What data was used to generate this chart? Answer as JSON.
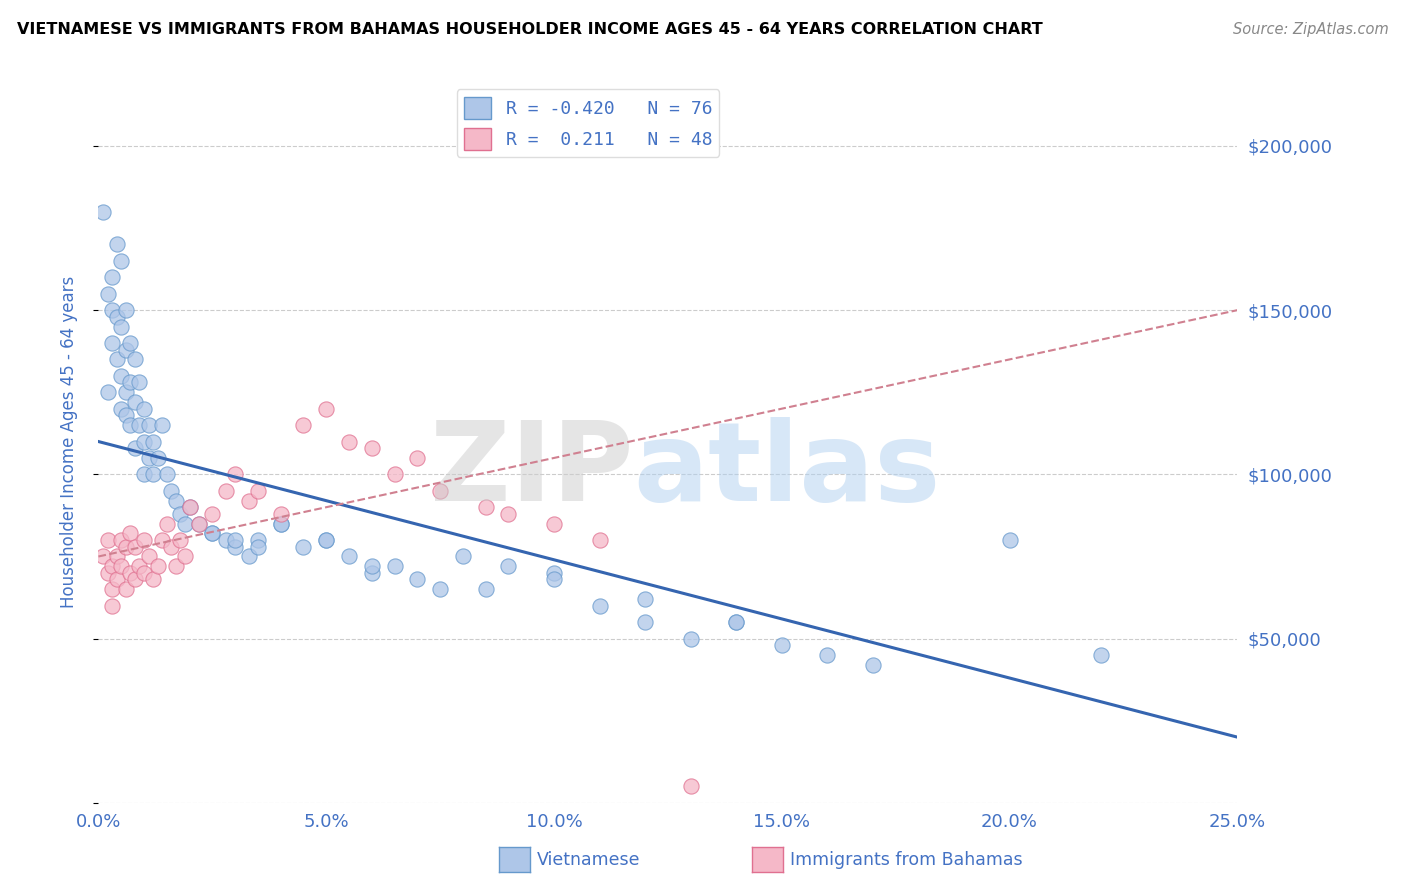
{
  "title": "VIETNAMESE VS IMMIGRANTS FROM BAHAMAS HOUSEHOLDER INCOME AGES 45 - 64 YEARS CORRELATION CHART",
  "source": "Source: ZipAtlas.com",
  "ylabel": "Householder Income Ages 45 - 64 years",
  "xlim": [
    0.0,
    0.25
  ],
  "ylim": [
    0,
    220000
  ],
  "xticks": [
    0.0,
    0.05,
    0.1,
    0.15,
    0.2,
    0.25
  ],
  "xticklabels": [
    "0.0%",
    "5.0%",
    "10.0%",
    "15.0%",
    "20.0%",
    "25.0%"
  ],
  "yticks_right": [
    50000,
    100000,
    150000,
    200000
  ],
  "yticklabels_right": [
    "$50,000",
    "$100,000",
    "$150,000",
    "$200,000"
  ],
  "legend_text1": "R = -0.420   N = 76",
  "legend_text2": "R =  0.211   N = 48",
  "color_viet_fill": "#aec6e8",
  "color_viet_edge": "#6699cc",
  "color_bah_fill": "#f5b8c8",
  "color_bah_edge": "#e07090",
  "color_trend_viet": "#3565b0",
  "color_trend_bah": "#d08090",
  "color_label": "#4472c4",
  "color_grid": "#cccccc",
  "background": "#ffffff",
  "viet_trend_x0": 0.0,
  "viet_trend_y0": 110000,
  "viet_trend_x1": 0.25,
  "viet_trend_y1": 20000,
  "bah_trend_x0": 0.0,
  "bah_trend_y0": 75000,
  "bah_trend_x1": 0.25,
  "bah_trend_y1": 150000,
  "viet_x": [
    0.001,
    0.002,
    0.002,
    0.003,
    0.003,
    0.003,
    0.004,
    0.004,
    0.004,
    0.005,
    0.005,
    0.005,
    0.005,
    0.006,
    0.006,
    0.006,
    0.006,
    0.007,
    0.007,
    0.007,
    0.008,
    0.008,
    0.008,
    0.009,
    0.009,
    0.01,
    0.01,
    0.01,
    0.011,
    0.011,
    0.012,
    0.012,
    0.013,
    0.014,
    0.015,
    0.016,
    0.017,
    0.018,
    0.019,
    0.02,
    0.022,
    0.025,
    0.028,
    0.03,
    0.033,
    0.035,
    0.04,
    0.045,
    0.05,
    0.055,
    0.06,
    0.065,
    0.07,
    0.075,
    0.085,
    0.09,
    0.1,
    0.11,
    0.12,
    0.13,
    0.14,
    0.15,
    0.16,
    0.17,
    0.2,
    0.22,
    0.14,
    0.12,
    0.1,
    0.08,
    0.06,
    0.05,
    0.04,
    0.035,
    0.03,
    0.025
  ],
  "viet_y": [
    180000,
    155000,
    125000,
    160000,
    150000,
    140000,
    170000,
    148000,
    135000,
    165000,
    145000,
    130000,
    120000,
    150000,
    138000,
    125000,
    118000,
    140000,
    128000,
    115000,
    135000,
    122000,
    108000,
    128000,
    115000,
    120000,
    110000,
    100000,
    115000,
    105000,
    110000,
    100000,
    105000,
    115000,
    100000,
    95000,
    92000,
    88000,
    85000,
    90000,
    85000,
    82000,
    80000,
    78000,
    75000,
    80000,
    85000,
    78000,
    80000,
    75000,
    70000,
    72000,
    68000,
    65000,
    65000,
    72000,
    70000,
    60000,
    55000,
    50000,
    55000,
    48000,
    45000,
    42000,
    80000,
    45000,
    55000,
    62000,
    68000,
    75000,
    72000,
    80000,
    85000,
    78000,
    80000,
    82000
  ],
  "bah_x": [
    0.001,
    0.002,
    0.002,
    0.003,
    0.003,
    0.003,
    0.004,
    0.004,
    0.005,
    0.005,
    0.006,
    0.006,
    0.007,
    0.007,
    0.008,
    0.008,
    0.009,
    0.01,
    0.01,
    0.011,
    0.012,
    0.013,
    0.014,
    0.015,
    0.016,
    0.017,
    0.018,
    0.019,
    0.02,
    0.022,
    0.025,
    0.028,
    0.03,
    0.033,
    0.035,
    0.04,
    0.045,
    0.05,
    0.055,
    0.06,
    0.065,
    0.07,
    0.075,
    0.085,
    0.09,
    0.1,
    0.11,
    0.13
  ],
  "bah_y": [
    75000,
    80000,
    70000,
    65000,
    72000,
    60000,
    75000,
    68000,
    80000,
    72000,
    78000,
    65000,
    82000,
    70000,
    78000,
    68000,
    72000,
    80000,
    70000,
    75000,
    68000,
    72000,
    80000,
    85000,
    78000,
    72000,
    80000,
    75000,
    90000,
    85000,
    88000,
    95000,
    100000,
    92000,
    95000,
    88000,
    115000,
    120000,
    110000,
    108000,
    100000,
    105000,
    95000,
    90000,
    88000,
    85000,
    80000,
    5000
  ]
}
